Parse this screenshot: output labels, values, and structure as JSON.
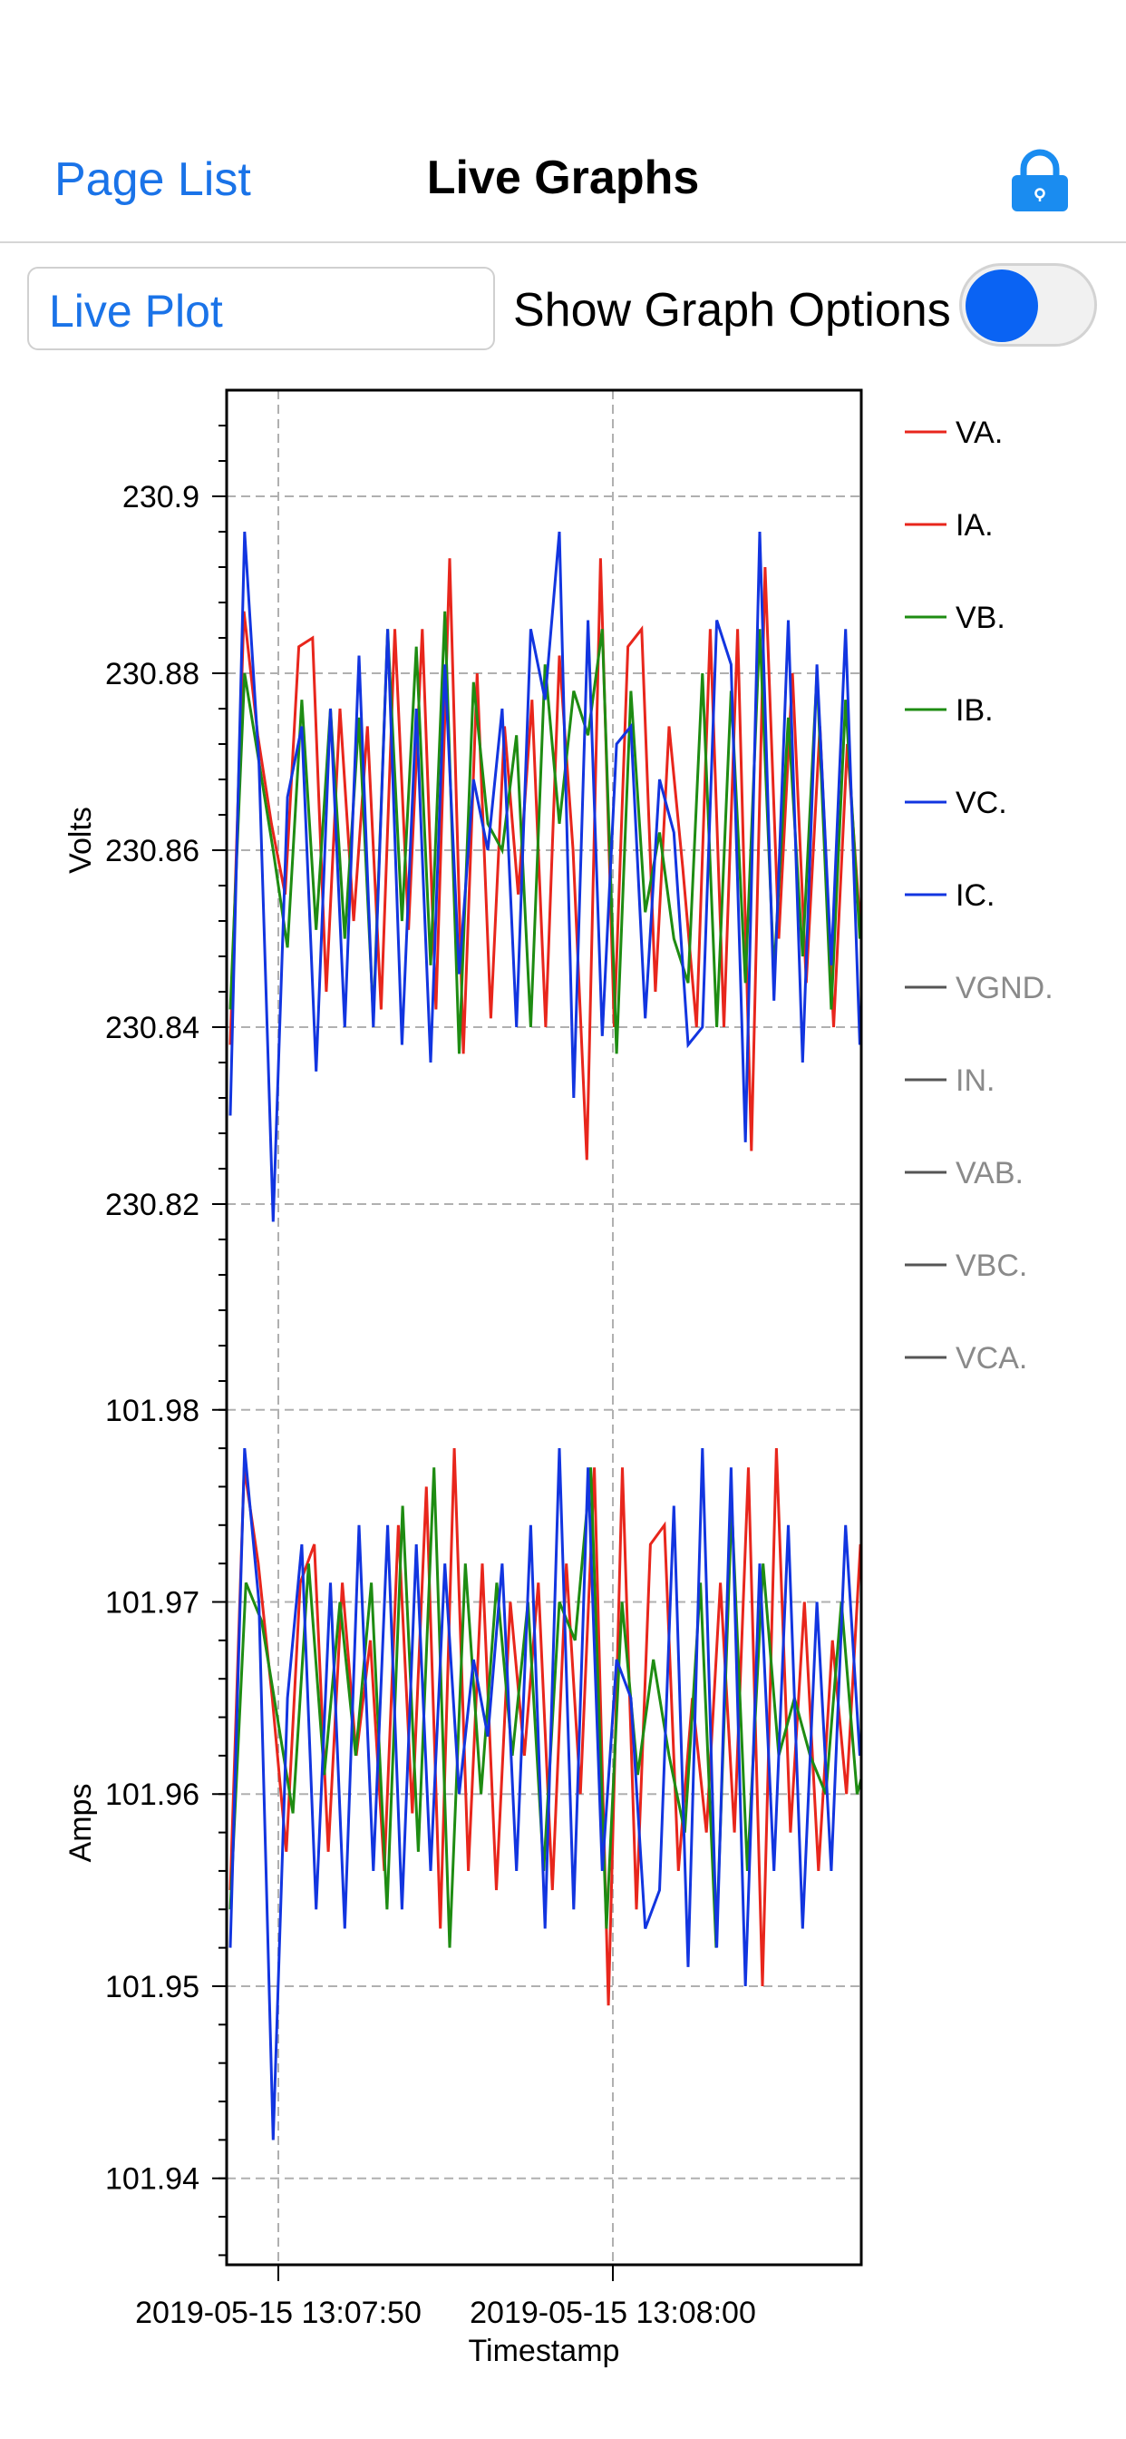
{
  "nav": {
    "back_label": "Page List",
    "title": "Live Graphs",
    "lock_icon": "lock-icon"
  },
  "controls": {
    "plot_type": "Live Plot",
    "options_label": "Show Graph Options",
    "options_on": false
  },
  "colors": {
    "red": "#e8261c",
    "green": "#1e8c12",
    "blue": "#1235e0",
    "grey": "#777777",
    "accent": "#1a73e8"
  },
  "chart_data": {
    "type": "line",
    "xlabel": "Timestamp",
    "x_tick_labels": [
      "2019-05-15  13:07:50",
      "2019-05-15  13:08:00"
    ],
    "legend": [
      {
        "name": "VA.",
        "color": "#e8261c",
        "active": true
      },
      {
        "name": "IA.",
        "color": "#e8261c",
        "active": true
      },
      {
        "name": "VB.",
        "color": "#1e8c12",
        "active": true
      },
      {
        "name": "IB.",
        "color": "#1e8c12",
        "active": true
      },
      {
        "name": "VC.",
        "color": "#1235e0",
        "active": true
      },
      {
        "name": "IC.",
        "color": "#1235e0",
        "active": true
      },
      {
        "name": "VGND.",
        "color": "#555555",
        "active": false
      },
      {
        "name": "IN.",
        "color": "#555555",
        "active": false
      },
      {
        "name": "VAB.",
        "color": "#555555",
        "active": false
      },
      {
        "name": "VBC.",
        "color": "#555555",
        "active": false
      },
      {
        "name": "VCA.",
        "color": "#555555",
        "active": false
      }
    ],
    "legend_placement": "right",
    "grid": true,
    "panels": [
      {
        "ylabel": "Volts",
        "ylim": [
          230.8,
          230.912
        ],
        "y_ticks": [
          230.82,
          230.84,
          230.86,
          230.88,
          230.9
        ],
        "y_tick_labels": [
          "230.82",
          "230.84",
          "230.86",
          "230.88",
          "230.9"
        ],
        "series": [
          {
            "name": "VA.",
            "color": "#e8261c",
            "values": [
              230.838,
              230.887,
              230.873,
              230.863,
              230.855,
              230.883,
              230.884,
              230.844,
              230.876,
              230.852,
              230.874,
              230.842,
              230.885,
              230.851,
              230.885,
              230.842,
              230.893,
              230.837,
              230.88,
              230.841,
              230.874,
              230.855,
              230.877,
              230.84,
              230.882,
              230.86,
              230.825,
              230.893,
              230.84,
              230.883,
              230.885,
              230.844,
              230.874,
              230.858,
              230.84,
              230.885,
              230.84,
              230.885,
              230.826,
              230.892,
              230.85,
              230.88,
              230.845,
              230.874,
              230.84,
              230.872,
              230.85,
              230.874,
              230.863
            ]
          },
          {
            "name": "VB.",
            "color": "#1e8c12",
            "values": [
              230.842,
              230.88,
              230.87,
              230.86,
              230.849,
              230.877,
              230.851,
              230.876,
              230.85,
              230.875,
              230.841,
              230.885,
              230.852,
              230.883,
              230.847,
              230.887,
              230.837,
              230.879,
              230.863,
              230.86,
              230.873,
              230.84,
              230.881,
              230.863,
              230.878,
              230.873,
              230.885,
              230.837,
              230.878,
              230.853,
              230.862,
              230.85,
              230.845,
              230.88,
              230.84,
              230.878,
              230.845,
              230.885,
              230.846,
              230.875,
              230.848,
              230.88,
              230.842,
              230.877,
              230.85,
              230.87,
              230.865
            ]
          },
          {
            "name": "VC.",
            "color": "#1235e0",
            "values": [
              230.83,
              230.896,
              230.87,
              230.818,
              230.866,
              230.874,
              230.835,
              230.876,
              230.84,
              230.882,
              230.84,
              230.885,
              230.838,
              230.876,
              230.836,
              230.881,
              230.846,
              230.868,
              230.86,
              230.876,
              230.84,
              230.885,
              230.877,
              230.896,
              230.832,
              230.886,
              230.839,
              230.872,
              230.874,
              230.841,
              230.868,
              230.862,
              230.838,
              230.84,
              230.886,
              230.881,
              230.827,
              230.896,
              230.843,
              230.886,
              230.836,
              230.881,
              230.847,
              230.885,
              230.838,
              230.882,
              230.865
            ]
          }
        ]
      },
      {
        "ylabel": "Amps",
        "ylim": [
          101.9355,
          101.9815
        ],
        "y_ticks": [
          101.94,
          101.95,
          101.96,
          101.97,
          101.98
        ],
        "y_tick_labels": [
          "101.94",
          "101.95",
          "101.96",
          "101.97",
          "101.98"
        ],
        "series": [
          {
            "name": "IA.",
            "color": "#e8261c",
            "values": [
              101.955,
              101.977,
              101.972,
              101.965,
              101.957,
              101.971,
              101.973,
              101.957,
              101.971,
              101.962,
              101.968,
              101.956,
              101.974,
              101.959,
              101.976,
              101.953,
              101.978,
              101.956,
              101.972,
              101.955,
              101.97,
              101.962,
              101.971,
              101.955,
              101.972,
              101.96,
              101.977,
              101.949,
              101.977,
              101.954,
              101.973,
              101.974,
              101.956,
              101.965,
              101.958,
              101.971,
              101.958,
              101.977,
              101.95,
              101.978,
              101.958,
              101.97,
              101.956,
              101.968,
              101.96,
              101.973,
              101.962,
              101.968
            ]
          },
          {
            "name": "IB.",
            "color": "#1e8c12",
            "values": [
              101.954,
              101.971,
              101.969,
              101.964,
              101.959,
              101.972,
              101.961,
              101.97,
              101.962,
              101.971,
              101.954,
              101.975,
              101.957,
              101.977,
              101.952,
              101.972,
              101.96,
              101.971,
              101.962,
              101.97,
              101.956,
              101.97,
              101.968,
              101.977,
              101.953,
              101.97,
              101.961,
              101.967,
              101.962,
              101.958,
              101.971,
              101.952,
              101.975,
              101.956,
              101.972,
              101.962,
              101.965,
              101.962,
              101.96,
              101.97,
              101.96,
              101.963,
              101.968
            ]
          },
          {
            "name": "IC.",
            "color": "#1235e0",
            "values": [
              101.952,
              101.978,
              101.97,
              101.942,
              101.965,
              101.973,
              101.954,
              101.971,
              101.953,
              101.974,
              101.956,
              101.974,
              101.954,
              101.973,
              101.956,
              101.972,
              101.96,
              101.967,
              101.963,
              101.972,
              101.956,
              101.974,
              101.953,
              101.978,
              101.954,
              101.977,
              101.956,
              101.967,
              101.965,
              101.953,
              101.955,
              101.975,
              101.951,
              101.978,
              101.952,
              101.977,
              101.95,
              101.972,
              101.956,
              101.974,
              101.953,
              101.97,
              101.956,
              101.974,
              101.962,
              101.97,
              101.965
            ]
          }
        ]
      }
    ]
  }
}
